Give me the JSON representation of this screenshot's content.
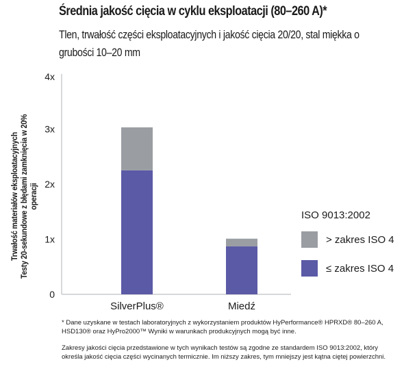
{
  "header": {
    "title": "Średnia jakość cięcia w cyklu eksploatacji (80–260 A)*",
    "subtitle": "Tlen, trwałość części eksploatacyjnych i jakość cięcia 20/20, stal miękka o grubości 10–20 mm"
  },
  "chart_data": {
    "type": "bar",
    "stacked": true,
    "categories": [
      "SilverPlus®",
      "Miedź"
    ],
    "series": [
      {
        "name": "≤ zakres ISO 4",
        "values": [
          2.25,
          0.87
        ],
        "color": "#5b5aa6"
      },
      {
        "name": "> zakres ISO 4",
        "values": [
          0.78,
          0.14
        ],
        "color": "#9a9ea3"
      }
    ],
    "ylim": [
      0,
      4
    ],
    "yticks": [
      "0",
      "1x",
      "2x",
      "3x",
      "4x"
    ],
    "ylabel": [
      "Trwałość materiałów eksploatacyjnych",
      "Testy 20-sekundowe z błędami zamknięcia w 20% operacji"
    ],
    "legend": {
      "title": "ISO 9013:2002",
      "placement": "right"
    },
    "axis_color": "#c9cbce"
  },
  "footnotes": {
    "note1": "* Dane uzyskane w testach laboratoryjnych z wykorzystaniem produktów HyPerformance® HPRXD® 80–260 A, HSD130® oraz HyPro2000™ Wyniki w warunkach produkcyjnych mogą być inne.",
    "note2": "Zakresy jakości cięcia przedstawione w tych wynikach testów są zgodne ze standardem ISO 9013:2002, który określa jakość cięcia części wycinanych termicznie. Im niższy zakres, tym mniejszy jest kątna ciętej powierzchni."
  }
}
